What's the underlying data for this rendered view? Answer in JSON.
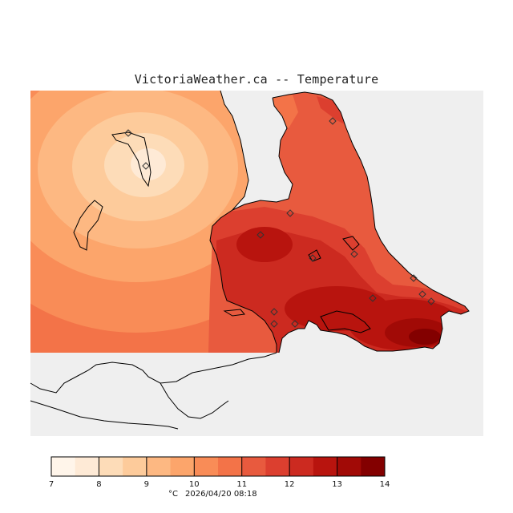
{
  "title": "VictoriaWeather.ca -- Temperature",
  "legend": {
    "unit": "°C",
    "timestamp": "2026/04/20 08:18",
    "min": 7,
    "max": 14,
    "ticks": [
      "7",
      "8",
      "9",
      "10",
      "11",
      "12",
      "13",
      "14"
    ],
    "bin_colors": [
      "#fff5ea",
      "#feead6",
      "#fddcb8",
      "#fdcb9b",
      "#fdb882",
      "#fca56b",
      "#f98c57",
      "#f37348",
      "#e85a3e",
      "#dc3f2f",
      "#cc2a20",
      "#b8140e",
      "#a10a06",
      "#830000"
    ]
  },
  "colors": {
    "ocean": "#efefef",
    "land_outline": "#000000"
  },
  "stations": [
    {
      "id": "st1"
    },
    {
      "id": "st2"
    },
    {
      "id": "st3"
    },
    {
      "id": "st4"
    },
    {
      "id": "st5"
    },
    {
      "id": "st6"
    },
    {
      "id": "st7"
    },
    {
      "id": "st8"
    },
    {
      "id": "st9"
    },
    {
      "id": "st10"
    },
    {
      "id": "st11"
    },
    {
      "id": "st12"
    },
    {
      "id": "st13"
    },
    {
      "id": "st14"
    }
  ]
}
